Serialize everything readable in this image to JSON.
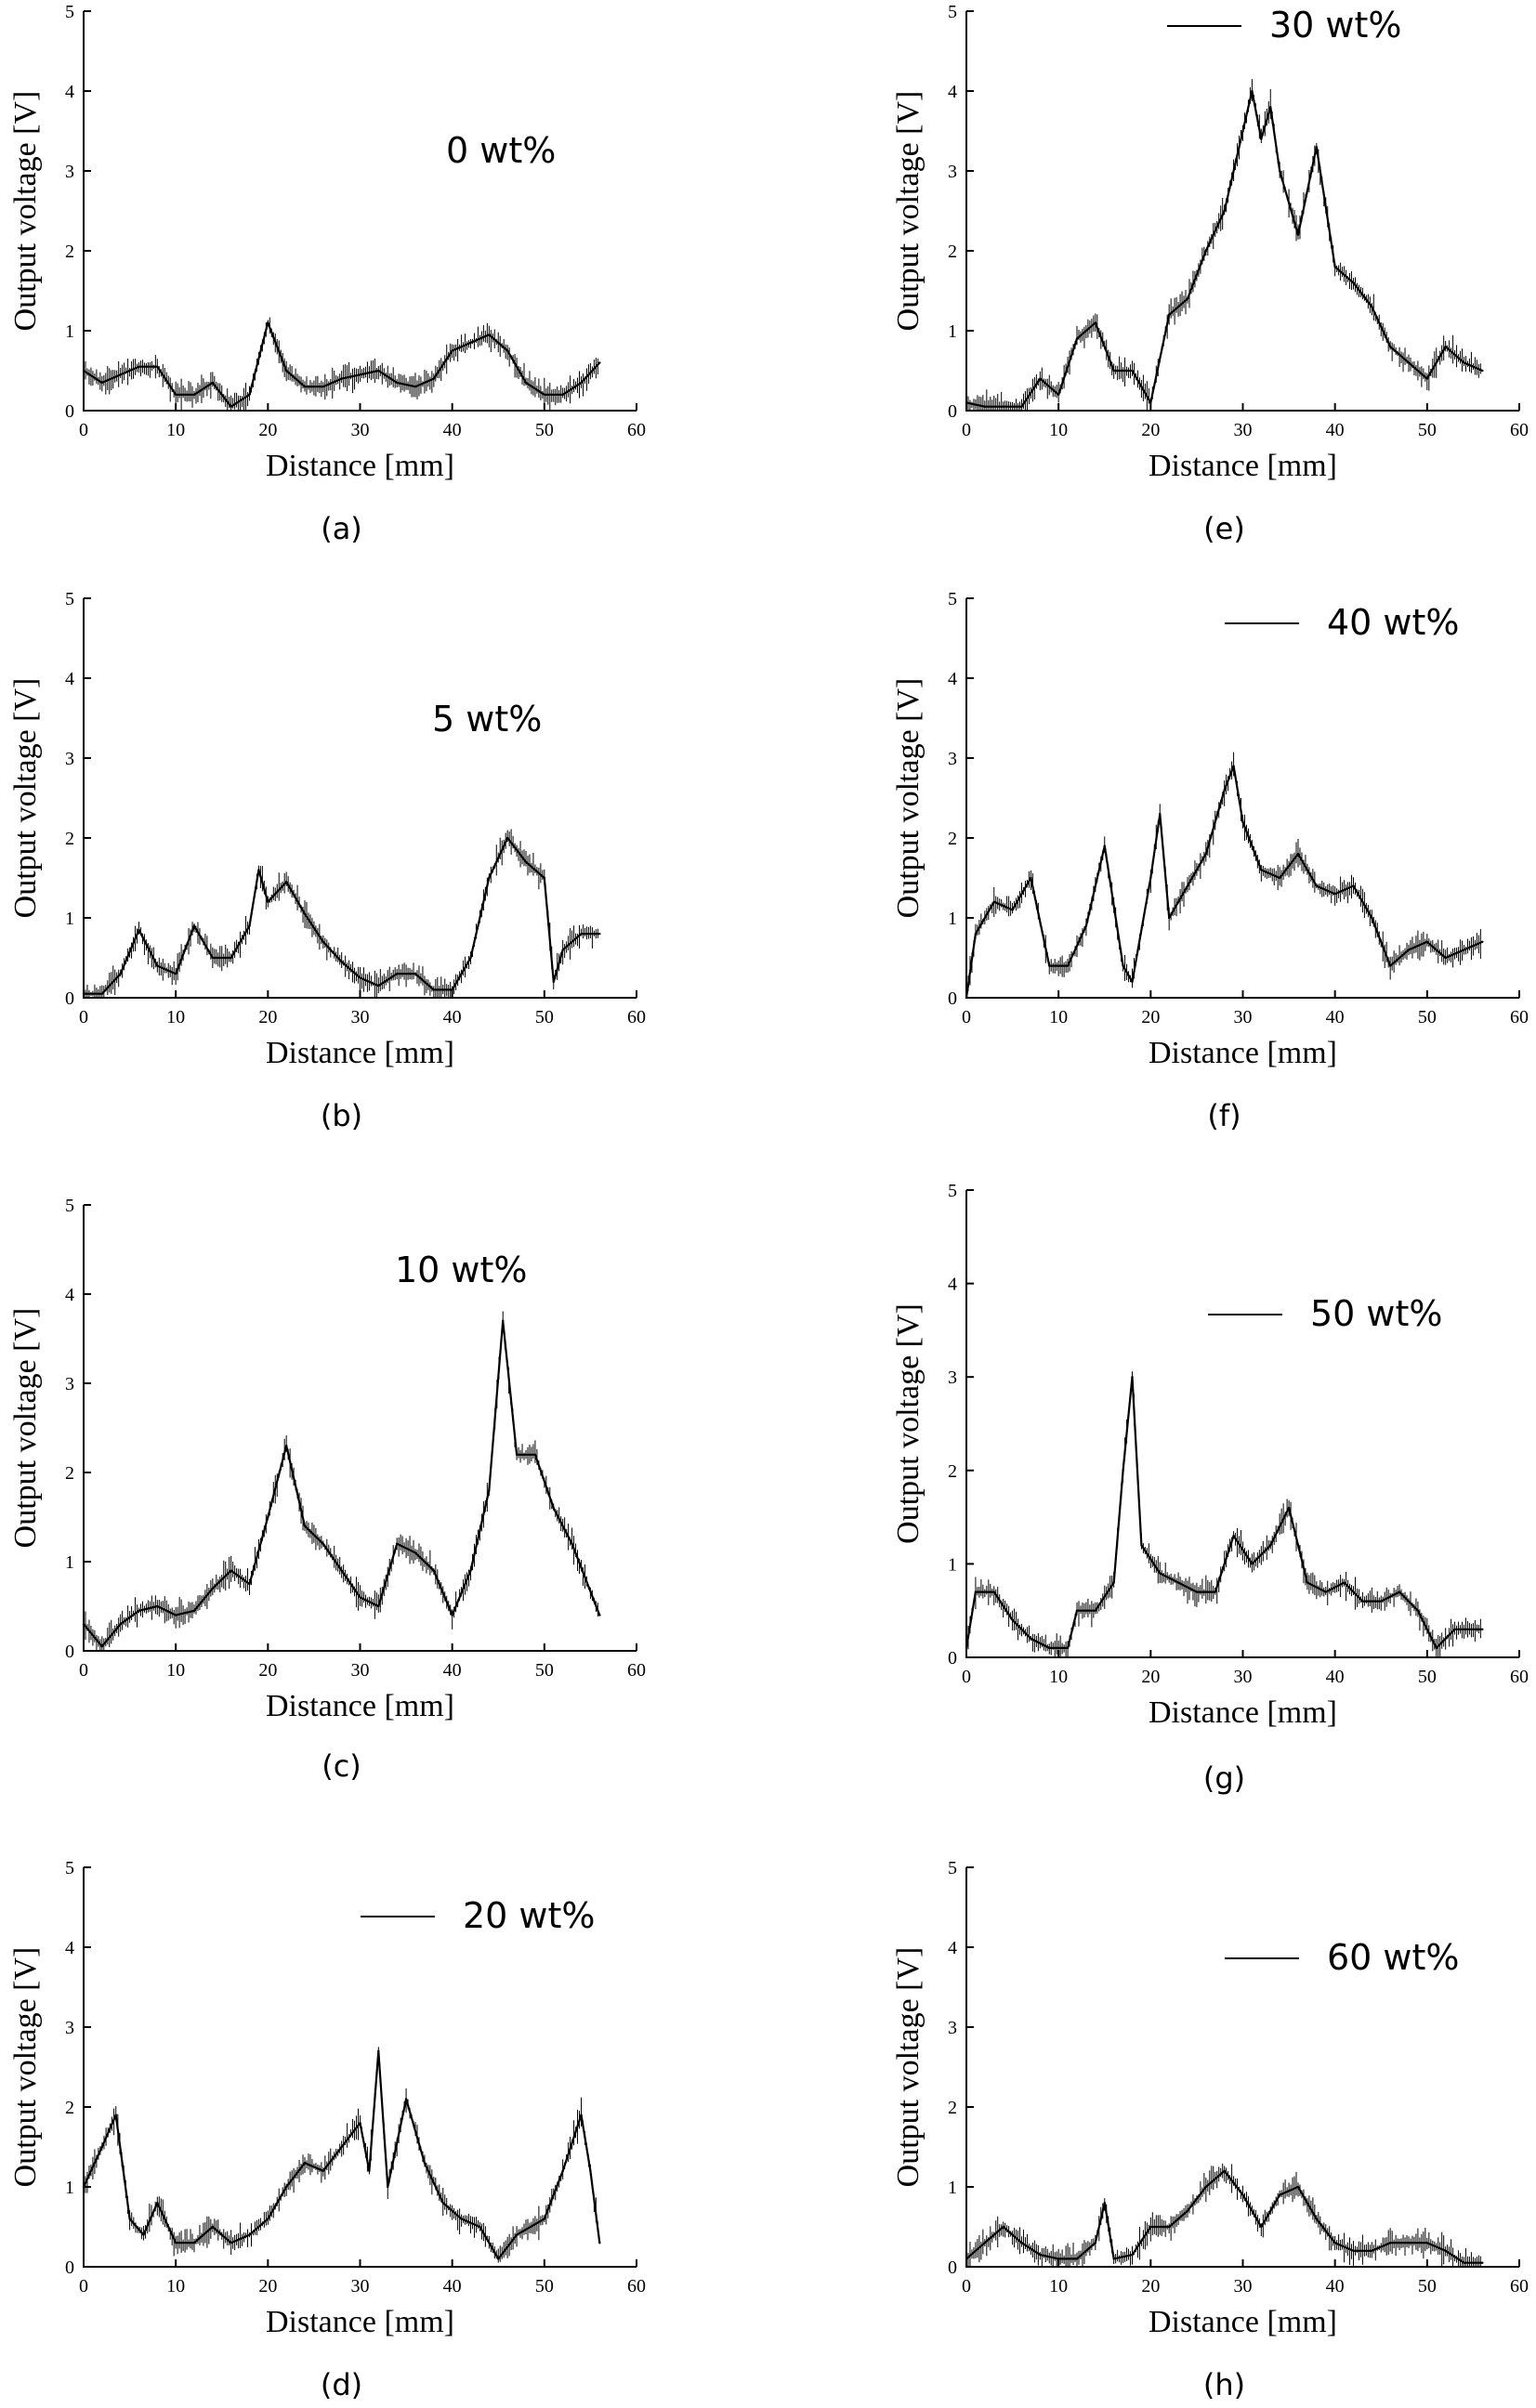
{
  "chart_data": [
    {
      "panel": "(a)",
      "type": "line",
      "legend": "0 wt%",
      "legend_has_line": false,
      "xlabel": "Distance [mm]",
      "ylabel": "Output voltage [V]",
      "xlim": [
        0,
        60
      ],
      "ylim": [
        0,
        5
      ],
      "xticks": [
        "0",
        "10",
        "20",
        "30",
        "40",
        "50",
        "60"
      ],
      "yticks": [
        "0",
        "1",
        "2",
        "3",
        "4",
        "5"
      ],
      "x": [
        0,
        2,
        4,
        6,
        8,
        10,
        12,
        14,
        16,
        18,
        20,
        22,
        24,
        26,
        28,
        30,
        32,
        34,
        36,
        38,
        40,
        42,
        44,
        46,
        48,
        50,
        52,
        54,
        56
      ],
      "y": [
        0.5,
        0.35,
        0.45,
        0.55,
        0.55,
        0.2,
        0.2,
        0.35,
        0.05,
        0.2,
        1.1,
        0.5,
        0.3,
        0.3,
        0.4,
        0.45,
        0.5,
        0.35,
        0.3,
        0.4,
        0.75,
        0.85,
        0.95,
        0.75,
        0.35,
        0.2,
        0.2,
        0.35,
        0.6
      ]
    },
    {
      "panel": "(b)",
      "type": "line",
      "legend": "5 wt%",
      "legend_has_line": false,
      "xlabel": "Distance [mm]",
      "ylabel": "Output voltage [V]",
      "xlim": [
        0,
        60
      ],
      "ylim": [
        0,
        5
      ],
      "xticks": [
        "0",
        "10",
        "20",
        "30",
        "40",
        "50",
        "60"
      ],
      "yticks": [
        "0",
        "1",
        "2",
        "3",
        "4",
        "5"
      ],
      "x": [
        0,
        2,
        4,
        6,
        8,
        10,
        12,
        14,
        16,
        18,
        19,
        20,
        22,
        24,
        26,
        28,
        30,
        32,
        34,
        36,
        38,
        40,
        42,
        44,
        46,
        48,
        50,
        51,
        52,
        54,
        56
      ],
      "y": [
        0.05,
        0.05,
        0.3,
        0.85,
        0.4,
        0.3,
        0.9,
        0.5,
        0.5,
        0.9,
        1.6,
        1.2,
        1.45,
        1.05,
        0.7,
        0.45,
        0.25,
        0.15,
        0.3,
        0.3,
        0.1,
        0.1,
        0.5,
        1.5,
        2.0,
        1.7,
        1.5,
        0.2,
        0.6,
        0.8,
        0.8
      ]
    },
    {
      "panel": "(c)",
      "type": "line",
      "legend": "10 wt%",
      "legend_has_line": false,
      "xlabel": "Distance [mm]",
      "ylabel": "Output voltage [V]",
      "xlim": [
        0,
        60
      ],
      "ylim": [
        0,
        5
      ],
      "xticks": [
        "0",
        "10",
        "20",
        "30",
        "40",
        "50",
        "60"
      ],
      "yticks": [
        "0",
        "1",
        "2",
        "3",
        "4",
        "5"
      ],
      "x": [
        0,
        2,
        4,
        6,
        8,
        10,
        12,
        14,
        16,
        18,
        20,
        22,
        24,
        26,
        28,
        30,
        32,
        34,
        36,
        38,
        40,
        42,
        44,
        45.5,
        47,
        49,
        51,
        53,
        56
      ],
      "y": [
        0.3,
        0.05,
        0.3,
        0.45,
        0.5,
        0.4,
        0.45,
        0.7,
        0.9,
        0.75,
        1.5,
        2.3,
        1.4,
        1.2,
        0.9,
        0.6,
        0.5,
        1.2,
        1.1,
        0.9,
        0.4,
        0.9,
        1.8,
        3.7,
        2.2,
        2.2,
        1.6,
        1.2,
        0.4
      ]
    },
    {
      "panel": "(d)",
      "type": "line",
      "legend": "20 wt%",
      "legend_has_line": true,
      "xlabel": "Distance [mm]",
      "ylabel": "Output voltage [V]",
      "xlim": [
        0,
        60
      ],
      "ylim": [
        0,
        5
      ],
      "xticks": [
        "0",
        "10",
        "20",
        "30",
        "40",
        "50",
        "60"
      ],
      "yticks": [
        "0",
        "1",
        "2",
        "3",
        "4",
        "5"
      ],
      "x": [
        0,
        2,
        3.5,
        5,
        6.5,
        8,
        10,
        12,
        14,
        16,
        18,
        20,
        22,
        24,
        26,
        28,
        30,
        31,
        32,
        33,
        35,
        37,
        39,
        41,
        43,
        45,
        47,
        50,
        52,
        54,
        55,
        56
      ],
      "y": [
        1.0,
        1.5,
        1.9,
        0.6,
        0.4,
        0.8,
        0.3,
        0.3,
        0.5,
        0.3,
        0.4,
        0.6,
        1.0,
        1.3,
        1.2,
        1.5,
        1.8,
        1.2,
        2.7,
        1.0,
        2.1,
        1.3,
        0.8,
        0.6,
        0.5,
        0.1,
        0.4,
        0.6,
        1.2,
        1.9,
        1.2,
        0.3
      ]
    },
    {
      "panel": "(e)",
      "type": "line",
      "legend": "30 wt%",
      "legend_has_line": true,
      "xlabel": "Distance [mm]",
      "ylabel": "Output voltage [V]",
      "xlim": [
        0,
        60
      ],
      "ylim": [
        0,
        5
      ],
      "xticks": [
        "0",
        "10",
        "20",
        "30",
        "40",
        "50",
        "60"
      ],
      "yticks": [
        "0",
        "1",
        "2",
        "3",
        "4",
        "5"
      ],
      "x": [
        0,
        2,
        4,
        6,
        8,
        10,
        12,
        14,
        16,
        18,
        20,
        22,
        24,
        26,
        28,
        30,
        31,
        32,
        33,
        34,
        35,
        36,
        38,
        40,
        42,
        44,
        46,
        48,
        50,
        52,
        54,
        56
      ],
      "y": [
        0.1,
        0.05,
        0.05,
        0.05,
        0.4,
        0.2,
        0.9,
        1.1,
        0.5,
        0.5,
        0.1,
        1.2,
        1.4,
        2.0,
        2.5,
        3.5,
        4.0,
        3.4,
        3.8,
        3.0,
        2.6,
        2.2,
        3.3,
        1.8,
        1.6,
        1.3,
        0.8,
        0.6,
        0.4,
        0.8,
        0.6,
        0.5
      ]
    },
    {
      "panel": "(f)",
      "type": "line",
      "legend": "40 wt%",
      "legend_has_line": true,
      "xlabel": "Distance [mm]",
      "ylabel": "Output voltage [V]",
      "xlim": [
        0,
        60
      ],
      "ylim": [
        0,
        5
      ],
      "xticks": [
        "0",
        "10",
        "20",
        "30",
        "40",
        "50",
        "60"
      ],
      "yticks": [
        "0",
        "1",
        "2",
        "3",
        "4",
        "5"
      ],
      "x": [
        0,
        1,
        3,
        5,
        7,
        9,
        11,
        13,
        15,
        17,
        18,
        20,
        21,
        22,
        24,
        26,
        28,
        29,
        30,
        32,
        34,
        36,
        38,
        40,
        42,
        44,
        46,
        48,
        50,
        52,
        54,
        56
      ],
      "y": [
        0.0,
        0.8,
        1.2,
        1.1,
        1.5,
        0.4,
        0.4,
        0.9,
        1.9,
        0.4,
        0.2,
        1.5,
        2.3,
        1.0,
        1.4,
        1.8,
        2.6,
        2.9,
        2.2,
        1.6,
        1.5,
        1.8,
        1.4,
        1.3,
        1.4,
        1.0,
        0.4,
        0.6,
        0.7,
        0.5,
        0.6,
        0.7
      ]
    },
    {
      "panel": "(g)",
      "type": "line",
      "legend": "50 wt%",
      "legend_has_line": true,
      "xlabel": "Distance [mm]",
      "ylabel": "Output voltage [V]",
      "xlim": [
        0,
        60
      ],
      "ylim": [
        0,
        5
      ],
      "xticks": [
        "0",
        "10",
        "20",
        "30",
        "40",
        "50",
        "60"
      ],
      "yticks": [
        "0",
        "1",
        "2",
        "3",
        "4",
        "5"
      ],
      "x": [
        0,
        1,
        3,
        5,
        7,
        9,
        11,
        12,
        14,
        16,
        17,
        18,
        19,
        21,
        23,
        25,
        27,
        29,
        31,
        33,
        35,
        37,
        39,
        41,
        43,
        45,
        47,
        49,
        51,
        53,
        56
      ],
      "y": [
        0.1,
        0.7,
        0.7,
        0.4,
        0.2,
        0.1,
        0.1,
        0.5,
        0.5,
        0.8,
        2.0,
        3.0,
        1.2,
        0.9,
        0.8,
        0.7,
        0.7,
        1.3,
        1.0,
        1.2,
        1.6,
        0.8,
        0.7,
        0.8,
        0.6,
        0.6,
        0.7,
        0.5,
        0.1,
        0.3,
        0.3
      ]
    },
    {
      "panel": "(h)",
      "type": "line",
      "legend": "60 wt%",
      "legend_has_line": true,
      "xlabel": "Distance [mm]",
      "ylabel": "Output voltage [V]",
      "xlim": [
        0,
        60
      ],
      "ylim": [
        0,
        5
      ],
      "xticks": [
        "0",
        "10",
        "20",
        "30",
        "40",
        "50",
        "60"
      ],
      "yticks": [
        "0",
        "1",
        "2",
        "3",
        "4",
        "5"
      ],
      "x": [
        0,
        2,
        4,
        6,
        8,
        10,
        12,
        14,
        15,
        16,
        18,
        20,
        22,
        24,
        26,
        28,
        30,
        32,
        34,
        36,
        38,
        40,
        42,
        44,
        46,
        48,
        50,
        52,
        54,
        56
      ],
      "y": [
        0.1,
        0.3,
        0.5,
        0.3,
        0.15,
        0.1,
        0.1,
        0.3,
        0.8,
        0.1,
        0.15,
        0.5,
        0.5,
        0.7,
        1.0,
        1.2,
        0.9,
        0.5,
        0.9,
        1.0,
        0.6,
        0.3,
        0.2,
        0.2,
        0.3,
        0.3,
        0.3,
        0.2,
        0.05,
        0.05
      ]
    }
  ]
}
